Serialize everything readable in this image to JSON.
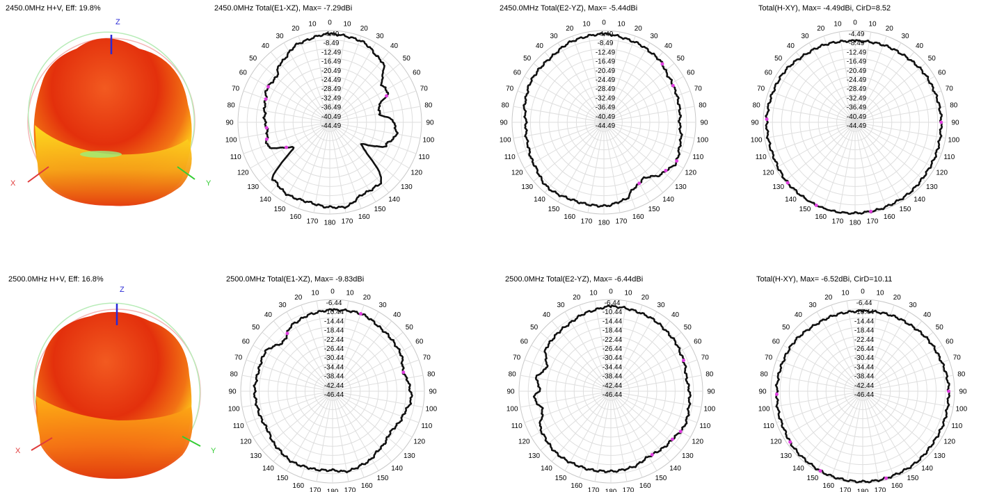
{
  "chart_data": [
    {
      "type": "3d-pattern",
      "title": "2450.0MHz H+V, Eff: 19.8%",
      "axes": {
        "x": "X",
        "y": "Y",
        "z": "Z"
      },
      "colors": {
        "axis_x": "#e03b3b",
        "axis_y": "#33cc33",
        "axis_z": "#2a2ad6",
        "body_main": "#e8340e",
        "body_low": "#ffd21a"
      }
    },
    {
      "type": "polar-line",
      "title": "2450.0MHz Total(E1-XZ), Max= -7.29dBi",
      "angle_labels": [
        "0",
        "10",
        "20",
        "30",
        "40",
        "50",
        "60",
        "70",
        "80",
        "90",
        "100",
        "110",
        "120",
        "130",
        "140",
        "150",
        "160",
        "170",
        "180",
        "170",
        "160",
        "150",
        "140",
        "130",
        "120",
        "110",
        "100",
        "90",
        "80",
        "70",
        "60",
        "50",
        "40",
        "30",
        "20",
        "10"
      ],
      "ring_labels": [
        "-4.49",
        "-8.49",
        "-12.49",
        "-16.49",
        "-20.49",
        "-24.49",
        "-28.49",
        "-32.49",
        "-36.49",
        "-40.49",
        "-44.49"
      ],
      "r_range": [
        -44.49,
        -4.49
      ],
      "profile": [
        {
          "a": 0,
          "g": -6.0
        },
        {
          "a": 20,
          "g": -6.5
        },
        {
          "a": 40,
          "g": -9.5
        },
        {
          "a": 55,
          "g": -16.5
        },
        {
          "a": 62,
          "g": -16.0
        },
        {
          "a": 72,
          "g": -22.0
        },
        {
          "a": 80,
          "g": -22.5
        },
        {
          "a": 90,
          "g": -16.5
        },
        {
          "a": 100,
          "g": -15.0
        },
        {
          "a": 112,
          "g": -18.0
        },
        {
          "a": 125,
          "g": -27.5
        },
        {
          "a": 140,
          "g": -10.0
        },
        {
          "a": 155,
          "g": -10.0
        },
        {
          "a": 170,
          "g": -7.0
        },
        {
          "a": 180,
          "g": -7.5
        },
        {
          "a": 195,
          "g": -8.5
        },
        {
          "a": 210,
          "g": -8.0
        },
        {
          "a": 225,
          "g": -9.5
        },
        {
          "a": 235,
          "g": -25.0
        },
        {
          "a": 250,
          "g": -15.5
        },
        {
          "a": 262,
          "g": -17.0
        },
        {
          "a": 275,
          "g": -16.0
        },
        {
          "a": 288,
          "g": -15.0
        },
        {
          "a": 298,
          "g": -13.5
        },
        {
          "a": 310,
          "g": -14.0
        },
        {
          "a": 320,
          "g": -11.0
        },
        {
          "a": 340,
          "g": -7.5
        },
        {
          "a": 360,
          "g": -6.0
        }
      ],
      "markers": [
        65,
        265,
        290,
        300,
        255,
        240
      ]
    },
    {
      "type": "polar-line",
      "title": "2450.0MHz Total(E2-YZ), Max= -5.44dBi",
      "angle_labels": [
        "0",
        "10",
        "20",
        "30",
        "40",
        "50",
        "60",
        "70",
        "80",
        "90",
        "100",
        "110",
        "120",
        "130",
        "140",
        "150",
        "160",
        "170",
        "180",
        "170",
        "160",
        "150",
        "140",
        "130",
        "120",
        "110",
        "100",
        "90",
        "80",
        "70",
        "60",
        "50",
        "40",
        "30",
        "20",
        "10"
      ],
      "ring_labels": [
        "-4.49",
        "-8.49",
        "-12.49",
        "-16.49",
        "-20.49",
        "-24.49",
        "-28.49",
        "-32.49",
        "-36.49",
        "-40.49",
        "-44.49"
      ],
      "r_range": [
        -44.49,
        -4.49
      ],
      "profile": [
        {
          "a": 0,
          "g": -6.0
        },
        {
          "a": 20,
          "g": -7.0
        },
        {
          "a": 40,
          "g": -8.0
        },
        {
          "a": 55,
          "g": -10.0
        },
        {
          "a": 65,
          "g": -10.5
        },
        {
          "a": 80,
          "g": -11.0
        },
        {
          "a": 90,
          "g": -11.5
        },
        {
          "a": 105,
          "g": -10.0
        },
        {
          "a": 120,
          "g": -8.5
        },
        {
          "a": 130,
          "g": -10.5
        },
        {
          "a": 145,
          "g": -14.5
        },
        {
          "a": 155,
          "g": -13.0
        },
        {
          "a": 165,
          "g": -9.5
        },
        {
          "a": 180,
          "g": -8.0
        },
        {
          "a": 200,
          "g": -8.0
        },
        {
          "a": 220,
          "g": -7.0
        },
        {
          "a": 240,
          "g": -9.0
        },
        {
          "a": 255,
          "g": -10.0
        },
        {
          "a": 270,
          "g": -10.5
        },
        {
          "a": 285,
          "g": -9.0
        },
        {
          "a": 300,
          "g": -8.0
        },
        {
          "a": 320,
          "g": -8.0
        },
        {
          "a": 340,
          "g": -6.5
        },
        {
          "a": 360,
          "g": -6.0
        }
      ],
      "markers": [
        45,
        62,
        118,
        128,
        150
      ]
    },
    {
      "type": "polar-line",
      "title": "Total(H-XY), Max= -4.49dBi, CirD=8.52",
      "angle_labels": [
        "0",
        "10",
        "20",
        "30",
        "40",
        "50",
        "60",
        "70",
        "80",
        "90",
        "100",
        "110",
        "120",
        "130",
        "140",
        "150",
        "160",
        "170",
        "180",
        "170",
        "160",
        "150",
        "140",
        "130",
        "120",
        "110",
        "100",
        "90",
        "80",
        "70",
        "60",
        "50",
        "40",
        "30",
        "20",
        "10"
      ],
      "ring_labels": [
        "-4.49",
        "-8.49",
        "-12.49",
        "-16.49",
        "-20.49",
        "-24.49",
        "-28.49",
        "-32.49",
        "-36.49",
        "-40.49",
        "-44.49"
      ],
      "r_range": [
        -44.49,
        -4.49
      ],
      "profile": [
        {
          "a": 0,
          "g": -9.0
        },
        {
          "a": 30,
          "g": -8.5
        },
        {
          "a": 60,
          "g": -7.5
        },
        {
          "a": 90,
          "g": -7.0
        },
        {
          "a": 120,
          "g": -6.5
        },
        {
          "a": 150,
          "g": -5.5
        },
        {
          "a": 170,
          "g": -5.0
        },
        {
          "a": 200,
          "g": -4.5
        },
        {
          "a": 225,
          "g": -5.0
        },
        {
          "a": 250,
          "g": -6.0
        },
        {
          "a": 270,
          "g": -6.0
        },
        {
          "a": 300,
          "g": -6.5
        },
        {
          "a": 330,
          "g": -8.0
        },
        {
          "a": 360,
          "g": -9.0
        }
      ],
      "markers": [
        90,
        170,
        205,
        228,
        272
      ]
    },
    {
      "type": "3d-pattern",
      "title": "2500.0MHz H+V, Eff: 16.8%",
      "axes": {
        "x": "X",
        "y": "Y",
        "z": "Z"
      },
      "colors": {
        "axis_x": "#e03b3b",
        "axis_y": "#33cc33",
        "axis_z": "#2a2ad6",
        "body_main": "#e8340e",
        "body_low": "#ffb514"
      }
    },
    {
      "type": "polar-line",
      "title": "2500.0MHz Total(E1-XZ), Max= -9.83dBi",
      "angle_labels": [
        "0",
        "10",
        "20",
        "30",
        "40",
        "50",
        "60",
        "70",
        "80",
        "90",
        "100",
        "110",
        "120",
        "130",
        "140",
        "150",
        "160",
        "170",
        "180",
        "170",
        "160",
        "150",
        "140",
        "130",
        "120",
        "110",
        "100",
        "90",
        "80",
        "70",
        "60",
        "50",
        "40",
        "30",
        "20",
        "10"
      ],
      "ring_labels": [
        "-6.44",
        "-10.44",
        "-14.44",
        "-18.44",
        "-22.44",
        "-26.44",
        "-30.44",
        "-34.44",
        "-38.44",
        "-42.44",
        "-46.44"
      ],
      "r_range": [
        -46.44,
        -6.44
      ],
      "profile": [
        {
          "a": 0,
          "g": -11.0
        },
        {
          "a": 20,
          "g": -10.5
        },
        {
          "a": 40,
          "g": -12.0
        },
        {
          "a": 60,
          "g": -12.5
        },
        {
          "a": 75,
          "g": -14.5
        },
        {
          "a": 85,
          "g": -13.0
        },
        {
          "a": 95,
          "g": -12.0
        },
        {
          "a": 110,
          "g": -14.0
        },
        {
          "a": 125,
          "g": -15.5
        },
        {
          "a": 140,
          "g": -14.0
        },
        {
          "a": 155,
          "g": -12.0
        },
        {
          "a": 170,
          "g": -11.0
        },
        {
          "a": 180,
          "g": -12.0
        },
        {
          "a": 195,
          "g": -11.5
        },
        {
          "a": 210,
          "g": -11.0
        },
        {
          "a": 225,
          "g": -12.0
        },
        {
          "a": 240,
          "g": -13.5
        },
        {
          "a": 255,
          "g": -13.0
        },
        {
          "a": 270,
          "g": -12.5
        },
        {
          "a": 285,
          "g": -13.0
        },
        {
          "a": 300,
          "g": -12.5
        },
        {
          "a": 315,
          "g": -16.0
        },
        {
          "a": 330,
          "g": -12.5
        },
        {
          "a": 345,
          "g": -11.5
        },
        {
          "a": 360,
          "g": -11.0
        }
      ],
      "markers": [
        20,
        75,
        322
      ]
    },
    {
      "type": "polar-line",
      "title": "2500.0MHz Total(E2-YZ), Max= -6.44dBi",
      "angle_labels": [
        "0",
        "10",
        "20",
        "30",
        "40",
        "50",
        "60",
        "70",
        "80",
        "90",
        "100",
        "110",
        "120",
        "130",
        "140",
        "150",
        "160",
        "170",
        "180",
        "170",
        "160",
        "150",
        "140",
        "130",
        "120",
        "110",
        "100",
        "90",
        "80",
        "70",
        "60",
        "50",
        "40",
        "30",
        "20",
        "10"
      ],
      "ring_labels": [
        "-6.44",
        "-10.44",
        "-14.44",
        "-18.44",
        "-22.44",
        "-26.44",
        "-30.44",
        "-34.44",
        "-38.44",
        "-42.44",
        "-46.44"
      ],
      "r_range": [
        -46.44,
        -6.44
      ],
      "profile": [
        {
          "a": 0,
          "g": -9.5
        },
        {
          "a": 25,
          "g": -10.0
        },
        {
          "a": 50,
          "g": -11.0
        },
        {
          "a": 65,
          "g": -12.0
        },
        {
          "a": 80,
          "g": -13.0
        },
        {
          "a": 95,
          "g": -12.0
        },
        {
          "a": 115,
          "g": -11.0
        },
        {
          "a": 130,
          "g": -12.5
        },
        {
          "a": 150,
          "g": -13.5
        },
        {
          "a": 165,
          "g": -12.0
        },
        {
          "a": 180,
          "g": -11.5
        },
        {
          "a": 200,
          "g": -11.0
        },
        {
          "a": 220,
          "g": -10.5
        },
        {
          "a": 240,
          "g": -11.5
        },
        {
          "a": 255,
          "g": -15.5
        },
        {
          "a": 265,
          "g": -13.0
        },
        {
          "a": 272,
          "g": -15.5
        },
        {
          "a": 280,
          "g": -13.5
        },
        {
          "a": 290,
          "g": -16.5
        },
        {
          "a": 305,
          "g": -12.5
        },
        {
          "a": 325,
          "g": -12.0
        },
        {
          "a": 345,
          "g": -10.5
        },
        {
          "a": 360,
          "g": -9.5
        }
      ],
      "markers": [
        67,
        120,
        128,
        147
      ]
    },
    {
      "type": "polar-line",
      "title": "Total(H-XY), Max= -6.52dBi, CirD=10.11",
      "angle_labels": [
        "0",
        "10",
        "20",
        "30",
        "40",
        "50",
        "60",
        "70",
        "80",
        "90",
        "100",
        "110",
        "120",
        "130",
        "140",
        "150",
        "160",
        "170",
        "180",
        "170",
        "160",
        "150",
        "140",
        "130",
        "120",
        "110",
        "100",
        "90",
        "80",
        "70",
        "60",
        "50",
        "40",
        "30",
        "20",
        "10"
      ],
      "ring_labels": [
        "-6.44",
        "-10.44",
        "-14.44",
        "-18.44",
        "-22.44",
        "-26.44",
        "-30.44",
        "-34.44",
        "-38.44",
        "-42.44",
        "-46.44"
      ],
      "r_range": [
        -46.44,
        -6.44
      ],
      "profile": [
        {
          "a": 0,
          "g": -11.5
        },
        {
          "a": 30,
          "g": -11.0
        },
        {
          "a": 60,
          "g": -10.0
        },
        {
          "a": 90,
          "g": -9.0
        },
        {
          "a": 120,
          "g": -8.5
        },
        {
          "a": 150,
          "g": -7.5
        },
        {
          "a": 175,
          "g": -7.0
        },
        {
          "a": 200,
          "g": -7.0
        },
        {
          "a": 225,
          "g": -7.5
        },
        {
          "a": 250,
          "g": -8.5
        },
        {
          "a": 270,
          "g": -9.0
        },
        {
          "a": 300,
          "g": -9.5
        },
        {
          "a": 330,
          "g": -11.0
        },
        {
          "a": 360,
          "g": -11.5
        }
      ],
      "markers": [
        90,
        165,
        208,
        235,
        268
      ]
    }
  ]
}
